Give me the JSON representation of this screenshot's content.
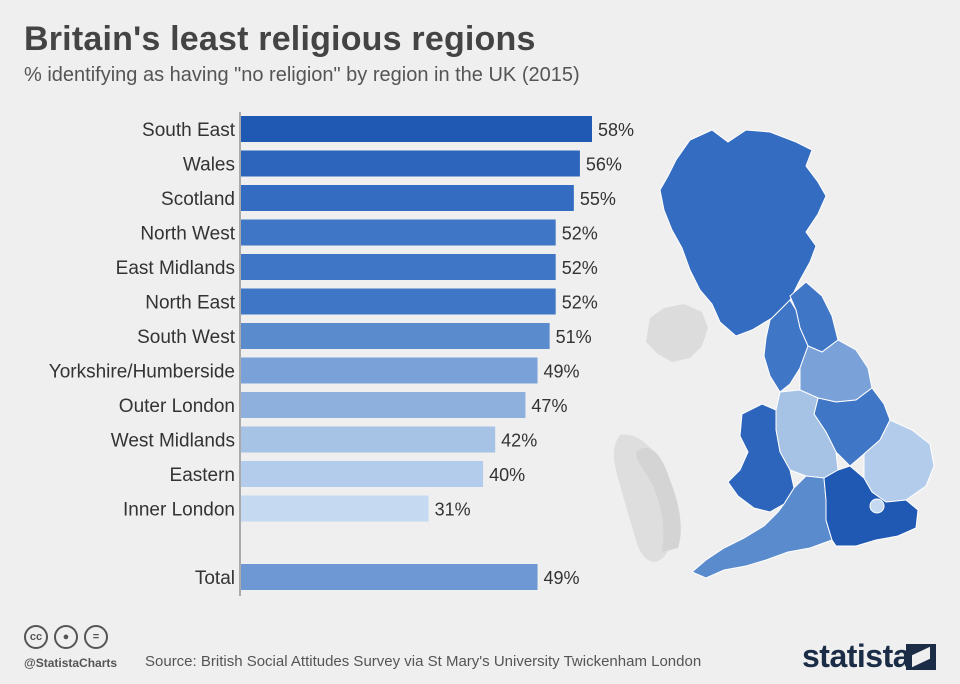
{
  "title": "Britain's least religious regions",
  "subtitle": "% identifying as having \"no religion\" by region in the UK (2015)",
  "chart_data": {
    "type": "bar",
    "orientation": "horizontal",
    "unit": "%",
    "categories": [
      "South East",
      "Wales",
      "Scotland",
      "North West",
      "East Midlands",
      "North East",
      "South West",
      "Yorkshire/Humberside",
      "Outer London",
      "West Midlands",
      "Eastern",
      "Inner London"
    ],
    "values": [
      58,
      56,
      55,
      52,
      52,
      52,
      51,
      49,
      47,
      42,
      40,
      31
    ],
    "value_labels": [
      "58%",
      "56%",
      "55%",
      "52%",
      "52%",
      "52%",
      "51%",
      "49%",
      "47%",
      "42%",
      "40%",
      "31%"
    ],
    "colors": [
      "#2059b4",
      "#2c65bb",
      "#336cc0",
      "#4076c6",
      "#4076c6",
      "#4076c6",
      "#5a8bcd",
      "#7ba2d8",
      "#8db0dd",
      "#a6c2e5",
      "#b3cceb",
      "#c5daf1"
    ],
    "total": {
      "label": "Total",
      "value": 49,
      "value_label": "49%",
      "color": "#6e98d4"
    },
    "xlim": [
      0,
      58
    ],
    "grid": false,
    "legend": "none"
  },
  "map": {
    "northern_ireland_color": "#dcdcdc",
    "region_colors": {
      "scotland": "#336cc0",
      "north_east": "#4076c6",
      "north_west": "#4076c6",
      "yorkshire": "#7ba2d8",
      "east_midlands": "#4076c6",
      "west_midlands": "#a6c2e5",
      "wales": "#2c65bb",
      "eastern": "#b3cceb",
      "south_west": "#5a8bcd",
      "south_east": "#2059b4",
      "london": "#c5daf1"
    }
  },
  "footer": {
    "icons": [
      "cc",
      "by",
      "eq"
    ],
    "handle": "@StatistaCharts",
    "source": "Source: British Social Attitudes Survey via St Mary's University Twickenham London",
    "logo": "statista"
  }
}
